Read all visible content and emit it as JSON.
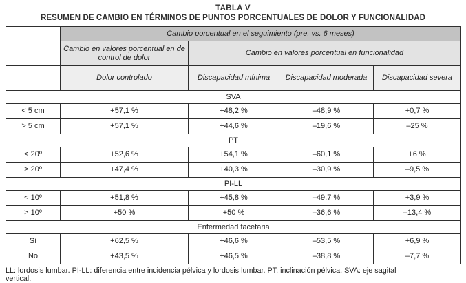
{
  "page": {
    "title": "TABLA V",
    "subtitle": "RESUMEN DE CAMBIO EN TÉRMINOS DE PUNTOS PORCENTUALES DE DOLOR Y FUNCIONALIDAD",
    "footnote_lines": [
      "LL: lordosis lumbar. PI-LL: diferencia entre incidencia pélvica y lordosis lumbar. PT: inclinación pélvica. SVA: eje sagital",
      "vertical."
    ]
  },
  "table": {
    "header_top": "Cambio porcentual en el seguimiento (pre. vs. 6 meses)",
    "group_pain": "Cambio en valores porcentual en de control de dolor",
    "group_function": "Cambio en valores porcentual en  funcionalidad",
    "columns": [
      "Dolor controlado",
      "Discapacidad mínima",
      "Discapacidad moderada",
      "Discapacidad severa"
    ],
    "sections": [
      {
        "name": "SVA",
        "rows": [
          {
            "label": "< 5 cm",
            "values": [
              "+57,1 %",
              "+48,2 %",
              "–48,9 %",
              "+0,7 %"
            ]
          },
          {
            "label": "> 5 cm",
            "values": [
              "+57,1 %",
              "+44,6 %",
              "–19,6 %",
              "–25 %"
            ]
          }
        ]
      },
      {
        "name": "PT",
        "rows": [
          {
            "label": "< 20º",
            "values": [
              "+52,6 %",
              "+54,1 %",
              "–60,1 %",
              "+6 %"
            ]
          },
          {
            "label": "> 20º",
            "values": [
              "+47,4 %",
              "+40,3 %",
              "–30,9 %",
              "–9,5 %"
            ]
          }
        ]
      },
      {
        "name": "PI-LL",
        "rows": [
          {
            "label": "< 10º",
            "values": [
              "+51,8 %",
              "+45,8 %",
              "–49,7 %",
              "+3,9 %"
            ]
          },
          {
            "label": "> 10º",
            "values": [
              "+50 %",
              "+50 %",
              "–36,6 %",
              "–13,4 %"
            ]
          }
        ]
      },
      {
        "name": "Enfermedad facetaria",
        "rows": [
          {
            "label": "Sí",
            "values": [
              "+62,5 %",
              "+46,6 %",
              "–53,5 %",
              "+6,9 %"
            ]
          },
          {
            "label": "No",
            "values": [
              "+43,5 %",
              "+46,5 %",
              "–38,8 %",
              "–7,7 %"
            ]
          }
        ]
      }
    ]
  },
  "colors": {
    "page_bg": "#ffffff",
    "header_top_bg": "#c2c2c2",
    "header_group_bg": "#e3e3e3",
    "header_col_bg": "#eeeeee",
    "border": "#2f2f2f",
    "text": "#1e1e1e"
  }
}
